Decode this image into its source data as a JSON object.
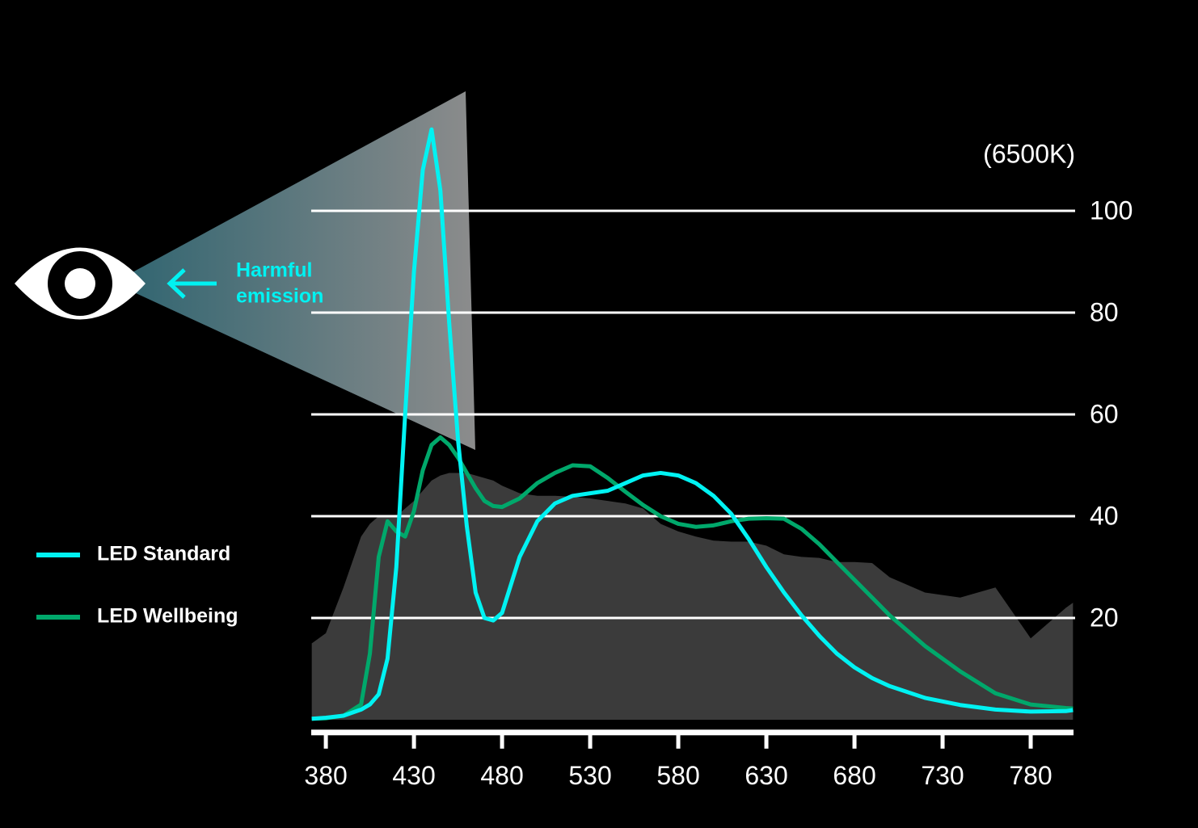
{
  "chart_data": {
    "type": "line",
    "title": "(6500K)",
    "annotation": [
      "Harmful",
      "emission"
    ],
    "x": [
      372,
      380,
      390,
      400,
      405,
      410,
      415,
      420,
      425,
      430,
      435,
      440,
      445,
      450,
      455,
      460,
      465,
      470,
      475,
      480,
      490,
      500,
      510,
      520,
      530,
      540,
      550,
      560,
      570,
      580,
      590,
      600,
      610,
      620,
      630,
      640,
      650,
      660,
      670,
      680,
      690,
      700,
      720,
      740,
      760,
      780,
      800,
      804
    ],
    "series": [
      {
        "name": "LED Standard",
        "color": "#00f2f2",
        "values": [
          0.2,
          0.4,
          0.8,
          2,
          3,
          5,
          12,
          30,
          60,
          88,
          108,
          116,
          104,
          78,
          55,
          38,
          25,
          20,
          19.5,
          21,
          32,
          39,
          42.5,
          44,
          44.5,
          45,
          46.5,
          48,
          48.5,
          48,
          46.5,
          44,
          40.5,
          35.5,
          30,
          25,
          20.5,
          16.5,
          13,
          10.3,
          8.2,
          6.6,
          4.3,
          2.9,
          2,
          1.6,
          1.7,
          1.9
        ]
      },
      {
        "name": "LED Wellbeing",
        "color": "#00a86b",
        "values": [
          0.2,
          0.3,
          0.8,
          3,
          13,
          32,
          39,
          37,
          36,
          41,
          49,
          54,
          55.5,
          54,
          51.5,
          48.5,
          45.5,
          43,
          42,
          41.8,
          43.5,
          46.5,
          48.5,
          50,
          49.8,
          47.5,
          44.8,
          42.2,
          40,
          38.5,
          37.9,
          38.2,
          39,
          39.5,
          39.6,
          39.5,
          37.5,
          34.5,
          31,
          27.5,
          24,
          20.5,
          14.5,
          9.5,
          5.2,
          3,
          2.3,
          2.2
        ]
      },
      {
        "color": "#3b3b3b",
        "values": [
          15,
          17,
          26,
          36,
          38.5,
          40,
          40,
          40,
          41.5,
          43,
          45,
          47,
          48,
          48.5,
          48.5,
          48.5,
          48,
          47.5,
          47,
          46,
          44.5,
          44,
          44,
          43.8,
          43.5,
          43,
          42.5,
          41.5,
          38.5,
          37,
          36,
          35.2,
          35,
          35,
          34.2,
          32.5,
          32,
          31.8,
          31,
          31,
          30.8,
          28,
          25,
          24,
          26,
          16,
          22,
          23
        ]
      }
    ],
    "xlim": [
      371.7,
      804.3
    ],
    "ylim": [
      -2.5,
      125
    ],
    "xticks": [
      380,
      430,
      480,
      530,
      580,
      630,
      680,
      730,
      780
    ],
    "yticks": [
      20,
      40,
      60,
      80,
      100
    ],
    "grid": true
  }
}
